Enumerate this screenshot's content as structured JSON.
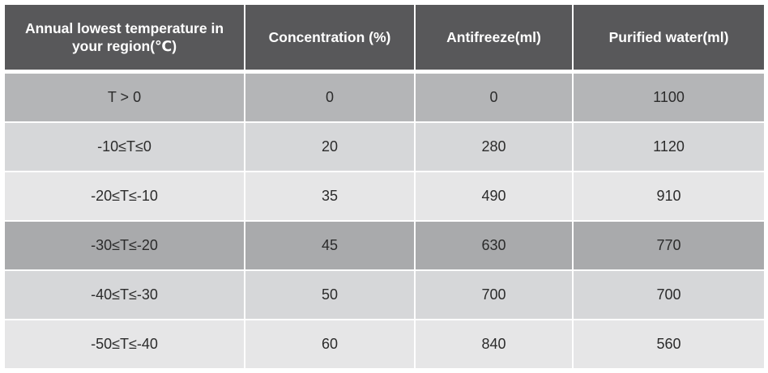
{
  "headers": {
    "temperature": "Annual lowest temperature in your region(℃)",
    "concentration": "Concentration (%)",
    "antifreeze": "Antifreeze(ml)",
    "water": "Purified water(ml)"
  },
  "rows": [
    {
      "range": "T > 0",
      "concentration": "0",
      "antifreeze": "0",
      "water": "1100"
    },
    {
      "range": "-10≤T≤0",
      "concentration": "20",
      "antifreeze": "280",
      "water": "1120"
    },
    {
      "range": "-20≤T≤-10",
      "concentration": "35",
      "antifreeze": "490",
      "water": "910"
    },
    {
      "range": "-30≤T≤-20",
      "concentration": "45",
      "antifreeze": "630",
      "water": "770"
    },
    {
      "range": "-40≤T≤-30",
      "concentration": "50",
      "antifreeze": "700",
      "water": "700"
    },
    {
      "range": "-50≤T≤-40",
      "concentration": "60",
      "antifreeze": "840",
      "water": "560"
    }
  ],
  "colors": {
    "header_bg": "#58585a",
    "header_text": "#ffffff",
    "row_mid": "#b4b5b7",
    "row_light": "#d6d7d9",
    "row_pale": "#e6e6e7",
    "row_dark": "#a9aaac"
  }
}
